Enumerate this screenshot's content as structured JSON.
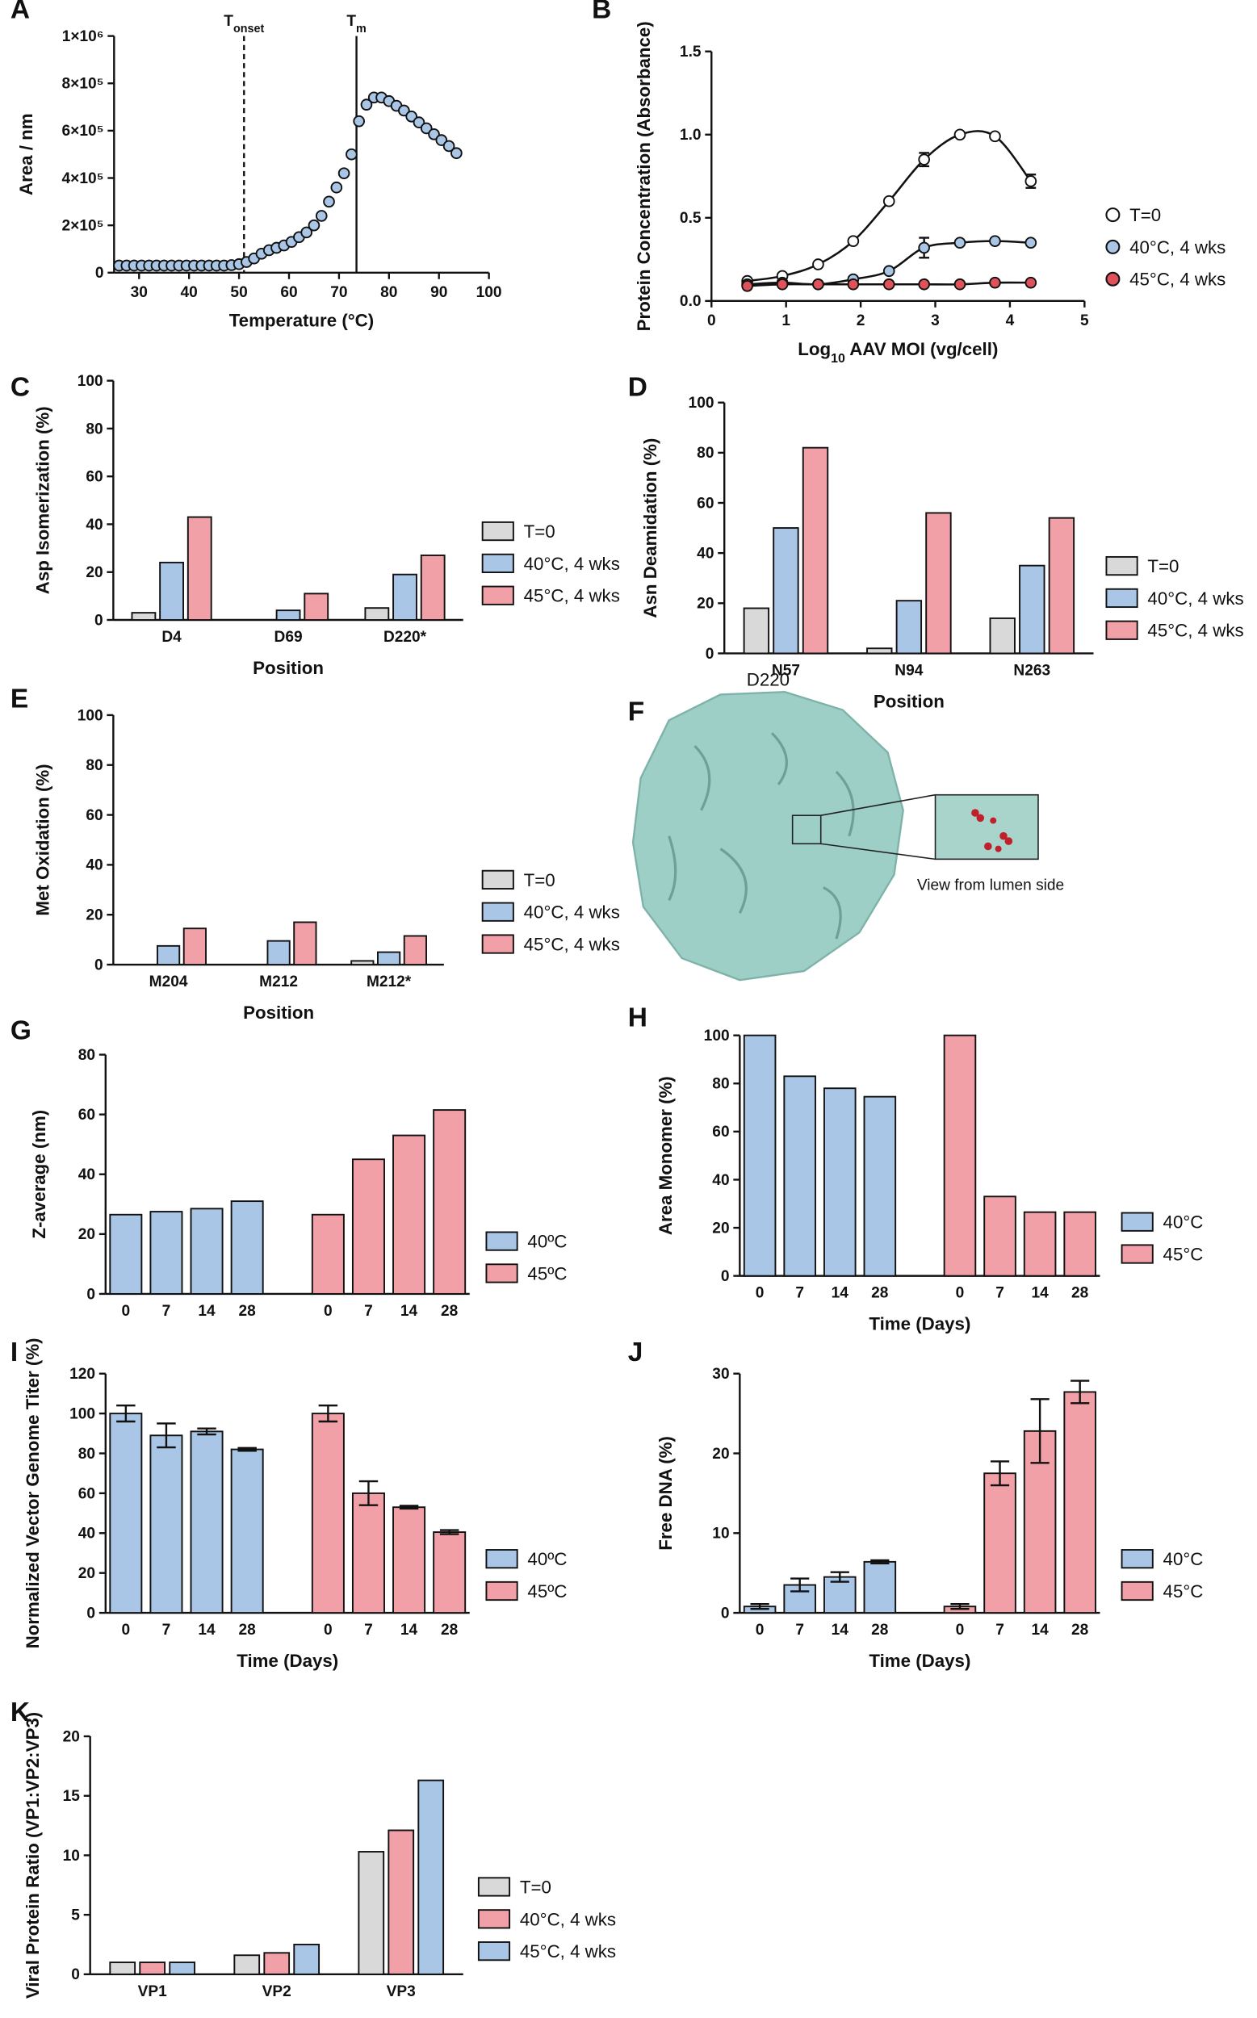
{
  "chart_data": [
    {
      "type": "scatter",
      "label": "A",
      "xlabel": "Temperature (°C)",
      "ylabel": "Area / nm",
      "x": [
        26,
        27.5,
        29,
        30.5,
        32,
        33.5,
        35,
        36.5,
        38,
        39.5,
        41,
        42.5,
        44,
        45.5,
        47,
        48.5,
        50,
        51.5,
        53,
        54.5,
        56,
        57.5,
        59,
        60.5,
        62,
        63.5,
        65,
        66.5,
        68,
        69.5,
        71,
        72.5,
        74,
        75.5,
        77,
        78.5,
        80,
        81.5,
        83,
        84.5,
        86,
        87.5,
        89,
        90.5,
        92,
        93.5
      ],
      "values": [
        30000,
        30000,
        30000,
        30000,
        30000,
        30000,
        30000,
        30000,
        30000,
        30000,
        30000,
        30000,
        30000,
        30000,
        30000,
        32000,
        36000,
        45000,
        60000,
        80000,
        95000,
        105000,
        115000,
        130000,
        150000,
        170000,
        200000,
        240000,
        300000,
        360000,
        420000,
        500000,
        640000,
        710000,
        740000,
        740000,
        725000,
        705000,
        685000,
        660000,
        635000,
        610000,
        585000,
        560000,
        535000,
        505000
      ],
      "color": "#a9c6e6",
      "xlim": [
        25,
        100
      ],
      "xticks": [
        30,
        40,
        50,
        60,
        70,
        80,
        90,
        100
      ],
      "ylim": [
        0,
        1000000
      ],
      "yticks": [
        0,
        {
          "value": 200000,
          "label": "2×10⁵"
        },
        {
          "value": 400000,
          "label": "4×10⁵"
        },
        {
          "value": 600000,
          "label": "6×10⁵"
        },
        {
          "value": 800000,
          "label": "8×10⁵"
        },
        {
          "value": 1000000,
          "label": "1×10⁶"
        }
      ],
      "annotations": [
        {
          "text": "T",
          "sub": "onset",
          "x": 51,
          "style": "dashed"
        },
        {
          "text": "T",
          "sub": "m",
          "x": 73.5,
          "style": "solid"
        }
      ]
    },
    {
      "type": "scatter",
      "label": "B",
      "xlabel": [
        "Log",
        "10",
        " AAV MOI (vg/cell)"
      ],
      "ylabel": "Protein Concentration (Absorbance)",
      "x": [
        0.48,
        0.95,
        1.43,
        1.9,
        2.38,
        2.85,
        3.33,
        3.8,
        4.28
      ],
      "series": [
        {
          "name": "T=0",
          "color": "#ffffff",
          "values": [
            0.12,
            0.15,
            0.22,
            0.36,
            0.6,
            0.85,
            1.0,
            0.99,
            0.72
          ],
          "errors": [
            null,
            null,
            null,
            null,
            null,
            0.04,
            null,
            null,
            0.04
          ]
        },
        {
          "name": "40°C, 4 wks",
          "color": "#a9c6e6",
          "values": [
            0.1,
            0.11,
            0.1,
            0.13,
            0.18,
            0.32,
            0.35,
            0.36,
            0.35
          ],
          "errors": [
            null,
            null,
            null,
            null,
            null,
            0.06,
            null,
            null,
            null
          ]
        },
        {
          "name": "45°C, 4 wks",
          "color": "#e0525a",
          "values": [
            0.09,
            0.1,
            0.1,
            0.1,
            0.1,
            0.1,
            0.1,
            0.11,
            0.11
          ],
          "errors": [
            null,
            null,
            null,
            null,
            null,
            null,
            null,
            null,
            null
          ]
        }
      ],
      "fit_lines": true,
      "xlim": [
        0,
        5
      ],
      "xticks": [
        0,
        1,
        2,
        3,
        4,
        5
      ],
      "ylim": [
        0,
        1.5
      ],
      "yticks": [
        {
          "value": 0,
          "label": "0.0"
        },
        0.5,
        {
          "value": 1,
          "label": "1.0"
        },
        1.5
      ]
    },
    {
      "type": "bar",
      "grouping": "grouped",
      "label": "C",
      "xlabel": "Position",
      "ylabel": "Asp Isomerization (%)",
      "categories": [
        "D4",
        "D69",
        "D220*"
      ],
      "series": [
        {
          "name": "T=0",
          "color": "#d9d9d9",
          "values": [
            3,
            0,
            5
          ]
        },
        {
          "name": "40°C, 4 wks",
          "color": "#a9c6e6",
          "values": [
            24,
            4,
            19
          ]
        },
        {
          "name": "45°C, 4 wks",
          "color": "#f0a0a6",
          "values": [
            43,
            11,
            27
          ]
        }
      ],
      "ylim": [
        0,
        100
      ],
      "yticks": [
        0,
        20,
        40,
        60,
        80,
        100
      ]
    },
    {
      "type": "bar",
      "grouping": "grouped",
      "label": "D",
      "xlabel": "Position",
      "ylabel": "Asn Deamidation (%)",
      "categories": [
        "N57",
        "N94",
        "N263"
      ],
      "series": [
        {
          "name": "T=0",
          "color": "#d9d9d9",
          "values": [
            18,
            2,
            14
          ]
        },
        {
          "name": "40°C, 4 wks",
          "color": "#a9c6e6",
          "values": [
            50,
            21,
            35
          ]
        },
        {
          "name": "45°C, 4 wks",
          "color": "#f0a0a6",
          "values": [
            82,
            56,
            54
          ]
        }
      ],
      "ylim": [
        0,
        100
      ],
      "yticks": [
        0,
        20,
        40,
        60,
        80,
        100
      ]
    },
    {
      "type": "bar",
      "grouping": "grouped",
      "label": "E",
      "xlabel": "Position",
      "ylabel": "Met Oxidation (%)",
      "categories": [
        "M204",
        "M212",
        "M212*"
      ],
      "series": [
        {
          "name": "T=0",
          "color": "#d9d9d9",
          "values": [
            0,
            0,
            1.5
          ]
        },
        {
          "name": "40°C, 4 wks",
          "color": "#a9c6e6",
          "values": [
            7.5,
            9.5,
            5
          ]
        },
        {
          "name": "45°C, 4 wks",
          "color": "#f0a0a6",
          "values": [
            14.5,
            17,
            11.5
          ]
        }
      ],
      "ylim": [
        0,
        100
      ],
      "yticks": [
        0,
        20,
        40,
        60,
        80,
        100
      ]
    },
    {
      "type": "image",
      "label": "F",
      "title": "D220",
      "caption": "View from lumen side"
    },
    {
      "type": "bar",
      "grouping": "blocks",
      "label": "G",
      "ylabel": "Z-average (nm)",
      "categories": [
        "0",
        "7",
        "14",
        "28"
      ],
      "series": [
        {
          "name": "40ºC",
          "color": "#a9c6e6",
          "values": [
            26.5,
            27.5,
            28.5,
            31
          ]
        },
        {
          "name": "45ºC",
          "color": "#f0a0a6",
          "values": [
            26.5,
            45,
            53,
            61.5
          ]
        }
      ],
      "ylim": [
        0,
        80
      ],
      "yticks": [
        0,
        20,
        40,
        60,
        80
      ]
    },
    {
      "type": "bar",
      "grouping": "blocks",
      "label": "H",
      "xlabel": "Time (Days)",
      "ylabel": "Area Monomer (%)",
      "categories": [
        "0",
        "7",
        "14",
        "28"
      ],
      "series": [
        {
          "name": "40°C",
          "color": "#a9c6e6",
          "values": [
            100,
            83,
            78,
            74.5
          ]
        },
        {
          "name": "45°C",
          "color": "#f0a0a6",
          "values": [
            100,
            33,
            26.5,
            26.5
          ]
        }
      ],
      "ylim": [
        0,
        100
      ],
      "yticks": [
        0,
        20,
        40,
        60,
        80,
        100
      ]
    },
    {
      "type": "bar",
      "grouping": "blocks",
      "label": "I",
      "xlabel": "Time (Days)",
      "ylabel": "Normalized Vector Genome Titer (%)",
      "categories": [
        "0",
        "7",
        "14",
        "28"
      ],
      "series": [
        {
          "name": "40ºC",
          "color": "#a9c6e6",
          "values": [
            100,
            89,
            91,
            82
          ],
          "errors": [
            4,
            6,
            1.5,
            0.7
          ]
        },
        {
          "name": "45ºC",
          "color": "#f0a0a6",
          "values": [
            100,
            60,
            53,
            40.5
          ],
          "errors": [
            4,
            6,
            0.7,
            1
          ]
        }
      ],
      "ylim": [
        0,
        120
      ],
      "yticks": [
        0,
        20,
        40,
        60,
        80,
        100,
        120
      ]
    },
    {
      "type": "bar",
      "grouping": "blocks",
      "label": "J",
      "xlabel": "Time (Days)",
      "ylabel": "Free DNA (%)",
      "categories": [
        "0",
        "7",
        "14",
        "28"
      ],
      "series": [
        {
          "name": "40°C",
          "color": "#a9c6e6",
          "values": [
            0.8,
            3.5,
            4.5,
            6.4
          ],
          "errors": [
            0.3,
            0.8,
            0.6,
            0.2
          ]
        },
        {
          "name": "45°C",
          "color": "#f0a0a6",
          "values": [
            0.8,
            17.5,
            22.8,
            27.7
          ],
          "errors": [
            0.3,
            1.5,
            4,
            1.4
          ]
        }
      ],
      "ylim": [
        0,
        30
      ],
      "yticks": [
        0,
        10,
        20,
        30
      ]
    },
    {
      "type": "bar",
      "grouping": "grouped",
      "label": "K",
      "ylabel": "Viral Protein Ratio (VP1:VP2:VP3)",
      "categories": [
        "VP1",
        "VP2",
        "VP3"
      ],
      "series": [
        {
          "name": "T=0",
          "color": "#d9d9d9",
          "values": [
            1,
            1.6,
            10.3
          ]
        },
        {
          "name": "40°C, 4 wks",
          "color": "#f0a0a6",
          "values": [
            1,
            1.8,
            12.1
          ]
        },
        {
          "name": "45°C, 4 wks",
          "color": "#a9c6e6",
          "values": [
            1,
            2.5,
            16.3
          ]
        }
      ],
      "ylim": [
        0,
        20
      ],
      "yticks": [
        0,
        5,
        10,
        15,
        20
      ]
    }
  ]
}
